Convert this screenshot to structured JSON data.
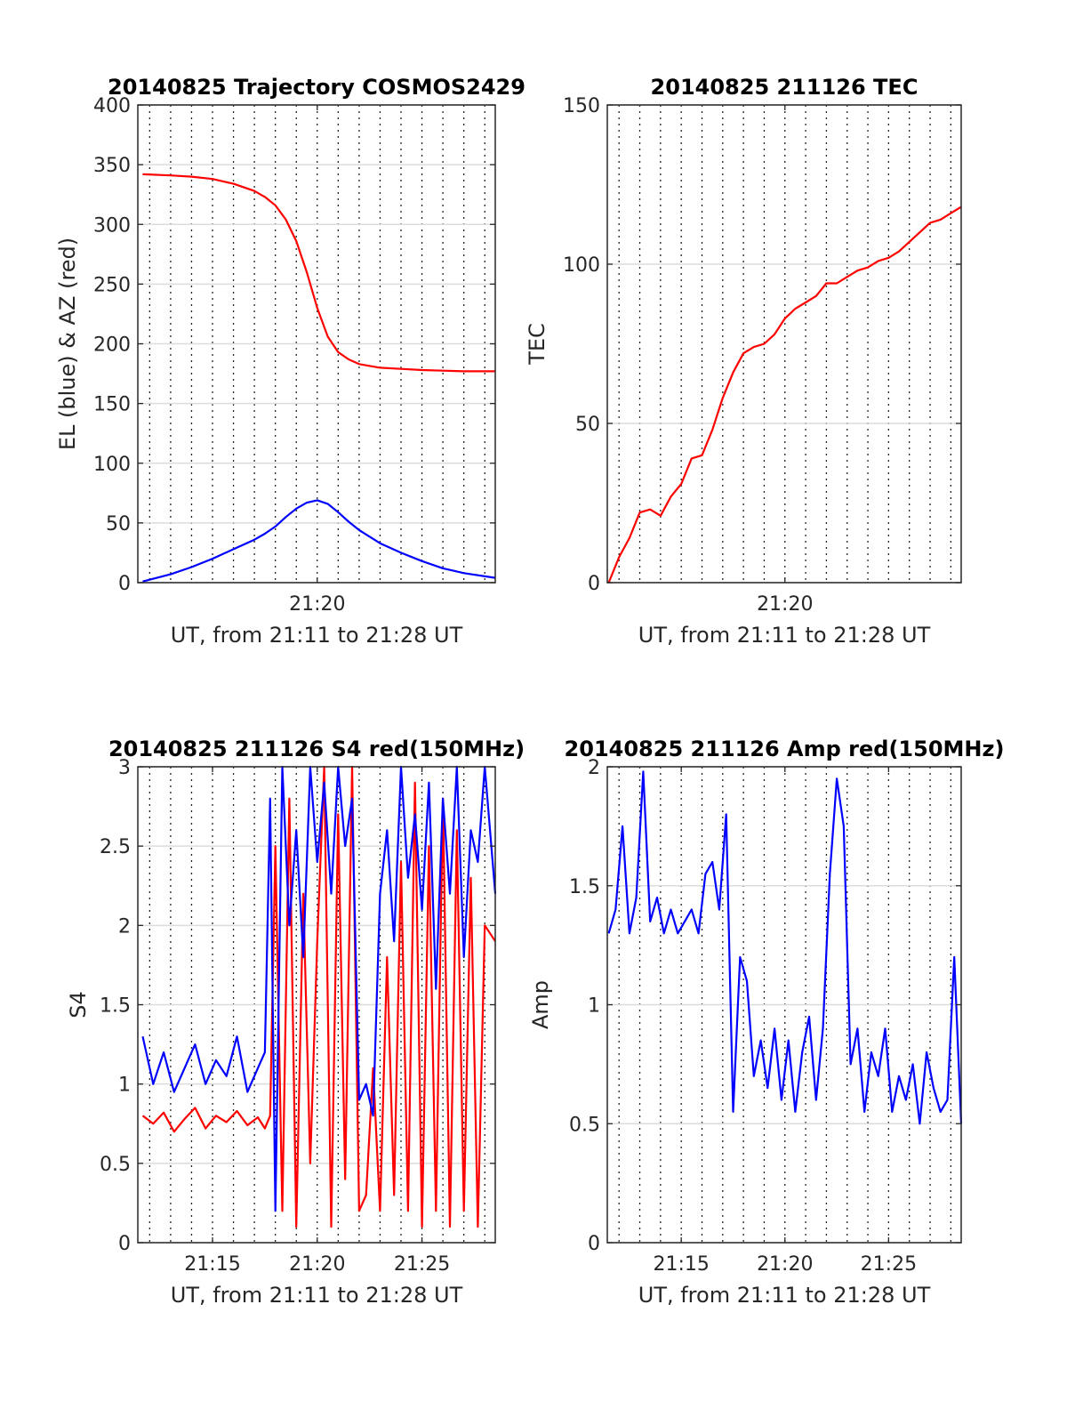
{
  "chart_data": [
    {
      "type": "line",
      "title": "20140825 Trajectory COSMOS2429",
      "xlabel": "UT, from 21:11 to 21:28 UT",
      "ylabel": "EL (blue) & AZ (red)",
      "xlim": [
        "21:11:26",
        "21:28:30"
      ],
      "ylim": [
        0,
        400
      ],
      "x_ticks": [
        "21:20"
      ],
      "y_ticks": [
        "0",
        "50",
        "100",
        "150",
        "200",
        "250",
        "300",
        "350",
        "400"
      ],
      "grid": true,
      "series": [
        {
          "color": "#ff0000",
          "x": [
            "21:11:40",
            "21:13:00",
            "21:14:00",
            "21:15:00",
            "21:16:00",
            "21:17:00",
            "21:17:30",
            "21:18:00",
            "21:18:30",
            "21:19:00",
            "21:19:30",
            "21:20:00",
            "21:20:30",
            "21:21:00",
            "21:21:30",
            "21:22:00",
            "21:23:00",
            "21:24:00",
            "21:25:00",
            "21:26:00",
            "21:27:00",
            "21:28:30"
          ],
          "values": [
            342,
            341,
            340,
            338,
            334,
            328,
            323,
            316,
            304,
            286,
            260,
            230,
            206,
            193,
            187,
            183,
            180,
            179,
            178,
            177.5,
            177,
            177
          ]
        },
        {
          "color": "#0000ff",
          "x": [
            "21:11:40",
            "21:13:00",
            "21:14:00",
            "21:15:00",
            "21:16:00",
            "21:17:00",
            "21:17:30",
            "21:18:00",
            "21:18:30",
            "21:19:00",
            "21:19:30",
            "21:20:00",
            "21:20:30",
            "21:21:00",
            "21:21:30",
            "21:22:00",
            "21:23:00",
            "21:24:00",
            "21:25:00",
            "21:26:00",
            "21:27:00",
            "21:28:30"
          ],
          "values": [
            1,
            7,
            13,
            20,
            28,
            36,
            41,
            47,
            55,
            62,
            67,
            69,
            66,
            59,
            51,
            44,
            33,
            25,
            18,
            12,
            8,
            4
          ]
        }
      ]
    },
    {
      "type": "line",
      "title": "20140825 211126 TEC",
      "xlabel": "UT, from 21:11 to 21:28 UT",
      "ylabel": "TEC",
      "xlim": [
        "21:11:26",
        "21:28:30"
      ],
      "ylim": [
        0,
        150
      ],
      "x_ticks": [
        "21:20"
      ],
      "y_ticks": [
        "0",
        "50",
        "100",
        "150"
      ],
      "grid": true,
      "series": [
        {
          "color": "#ff0000",
          "x": [
            "21:11:30",
            "21:12:00",
            "21:12:30",
            "21:13:00",
            "21:13:30",
            "21:14:00",
            "21:14:30",
            "21:15:00",
            "21:15:30",
            "21:16:00",
            "21:16:30",
            "21:17:00",
            "21:17:30",
            "21:18:00",
            "21:18:30",
            "21:19:00",
            "21:19:30",
            "21:20:00",
            "21:20:30",
            "21:21:00",
            "21:21:30",
            "21:22:00",
            "21:22:30",
            "21:23:00",
            "21:23:30",
            "21:24:00",
            "21:24:30",
            "21:25:00",
            "21:25:30",
            "21:26:00",
            "21:26:30",
            "21:27:00",
            "21:27:30",
            "21:28:00",
            "21:28:30"
          ],
          "values": [
            0,
            8,
            14,
            22,
            23,
            21,
            27,
            31,
            39,
            40,
            48,
            58,
            66,
            72,
            74,
            75,
            78,
            83,
            86,
            88,
            90,
            94,
            94,
            96,
            98,
            99,
            101,
            102,
            104,
            107,
            110,
            113,
            114,
            116,
            118
          ]
        }
      ]
    },
    {
      "type": "line",
      "title": "20140825 211126 S4 red(150MHz)",
      "xlabel": "UT, from 21:11 to 21:28 UT",
      "ylabel": "S4",
      "xlim": [
        "21:11:26",
        "21:28:30"
      ],
      "ylim": [
        0,
        3
      ],
      "x_ticks": [
        "21:15",
        "21:20",
        "21:25"
      ],
      "y_ticks": [
        "0",
        "0.5",
        "1",
        "1.5",
        "2",
        "2.5",
        "3"
      ],
      "grid": true,
      "series": [
        {
          "color": "#ff0000",
          "x": [
            "21:11:40",
            "21:12:10",
            "21:12:40",
            "21:13:10",
            "21:13:40",
            "21:14:10",
            "21:14:40",
            "21:15:10",
            "21:15:40",
            "21:16:10",
            "21:16:40",
            "21:17:10",
            "21:17:30",
            "21:17:45",
            "21:18:00",
            "21:18:20",
            "21:18:40",
            "21:19:00",
            "21:19:20",
            "21:19:40",
            "21:20:00",
            "21:20:20",
            "21:20:40",
            "21:21:00",
            "21:21:20",
            "21:21:40",
            "21:22:00",
            "21:22:20",
            "21:22:40",
            "21:23:00",
            "21:23:20",
            "21:23:40",
            "21:24:00",
            "21:24:20",
            "21:24:40",
            "21:25:00",
            "21:25:20",
            "21:25:40",
            "21:26:00",
            "21:26:20",
            "21:26:40",
            "21:27:00",
            "21:27:20",
            "21:27:40",
            "21:28:00",
            "21:28:30"
          ],
          "values": [
            0.8,
            0.75,
            0.82,
            0.7,
            0.78,
            0.85,
            0.72,
            0.8,
            0.76,
            0.83,
            0.74,
            0.79,
            0.72,
            0.8,
            2.5,
            0.2,
            2.8,
            0.1,
            2.2,
            0.5,
            1.9,
            3.0,
            0.1,
            2.7,
            0.4,
            3.0,
            0.2,
            0.3,
            1.1,
            0.2,
            1.8,
            0.3,
            2.4,
            0.2,
            2.9,
            0.1,
            2.5,
            0.2,
            2.8,
            0.1,
            2.6,
            0.2,
            2.3,
            0.1,
            2.0,
            1.9
          ]
        },
        {
          "color": "#0000ff",
          "x": [
            "21:11:40",
            "21:12:10",
            "21:12:40",
            "21:13:10",
            "21:13:40",
            "21:14:10",
            "21:14:40",
            "21:15:10",
            "21:15:40",
            "21:16:10",
            "21:16:40",
            "21:17:10",
            "21:17:30",
            "21:17:45",
            "21:18:00",
            "21:18:20",
            "21:18:40",
            "21:19:00",
            "21:19:20",
            "21:19:40",
            "21:20:00",
            "21:20:20",
            "21:20:40",
            "21:21:00",
            "21:21:20",
            "21:21:40",
            "21:22:00",
            "21:22:20",
            "21:22:40",
            "21:23:00",
            "21:23:20",
            "21:23:40",
            "21:24:00",
            "21:24:20",
            "21:24:40",
            "21:25:00",
            "21:25:20",
            "21:25:40",
            "21:26:00",
            "21:26:20",
            "21:26:40",
            "21:27:00",
            "21:27:20",
            "21:27:40",
            "21:28:00",
            "21:28:30"
          ],
          "values": [
            1.3,
            1.0,
            1.2,
            0.95,
            1.1,
            1.25,
            1.0,
            1.15,
            1.05,
            1.3,
            0.95,
            1.1,
            1.2,
            2.8,
            0.2,
            3.0,
            2.0,
            2.6,
            1.8,
            3.0,
            2.4,
            2.9,
            2.2,
            3.0,
            2.5,
            2.8,
            0.9,
            1.0,
            0.8,
            2.2,
            2.6,
            1.9,
            3.0,
            2.3,
            2.7,
            2.1,
            2.9,
            1.6,
            2.8,
            2.2,
            3.0,
            1.8,
            2.6,
            2.4,
            3.0,
            2.2
          ]
        }
      ]
    },
    {
      "type": "line",
      "title": "20140825 211126 Amp red(150MHz)",
      "xlabel": "UT, from 21:11 to 21:28 UT",
      "ylabel": "Amp",
      "xlim": [
        "21:11:26",
        "21:28:30"
      ],
      "ylim": [
        0,
        2
      ],
      "x_ticks": [
        "21:15",
        "21:20",
        "21:25"
      ],
      "y_ticks": [
        "0",
        "0.5",
        "1",
        "1.5",
        "2"
      ],
      "grid": true,
      "series": [
        {
          "color": "#0000ff",
          "x": [
            "21:11:30",
            "21:11:50",
            "21:12:10",
            "21:12:30",
            "21:12:50",
            "21:13:10",
            "21:13:30",
            "21:13:50",
            "21:14:10",
            "21:14:30",
            "21:14:50",
            "21:15:10",
            "21:15:30",
            "21:15:50",
            "21:16:10",
            "21:16:30",
            "21:16:50",
            "21:17:10",
            "21:17:30",
            "21:17:50",
            "21:18:10",
            "21:18:30",
            "21:18:50",
            "21:19:10",
            "21:19:30",
            "21:19:50",
            "21:20:10",
            "21:20:30",
            "21:20:50",
            "21:21:10",
            "21:21:30",
            "21:21:50",
            "21:22:10",
            "21:22:30",
            "21:22:50",
            "21:23:10",
            "21:23:30",
            "21:23:50",
            "21:24:10",
            "21:24:30",
            "21:24:50",
            "21:25:10",
            "21:25:30",
            "21:25:50",
            "21:26:10",
            "21:26:30",
            "21:26:50",
            "21:27:10",
            "21:27:30",
            "21:27:50",
            "21:28:10",
            "21:28:30"
          ],
          "values": [
            1.3,
            1.4,
            1.75,
            1.3,
            1.45,
            1.98,
            1.35,
            1.45,
            1.3,
            1.4,
            1.3,
            1.35,
            1.4,
            1.3,
            1.55,
            1.6,
            1.4,
            1.8,
            0.55,
            1.2,
            1.1,
            0.7,
            0.85,
            0.65,
            0.9,
            0.6,
            0.85,
            0.55,
            0.8,
            0.95,
            0.6,
            0.9,
            1.55,
            1.95,
            1.75,
            0.75,
            0.9,
            0.55,
            0.8,
            0.7,
            0.9,
            0.55,
            0.7,
            0.6,
            0.75,
            0.5,
            0.8,
            0.65,
            0.55,
            0.6,
            1.2,
            0.5
          ]
        }
      ]
    }
  ]
}
